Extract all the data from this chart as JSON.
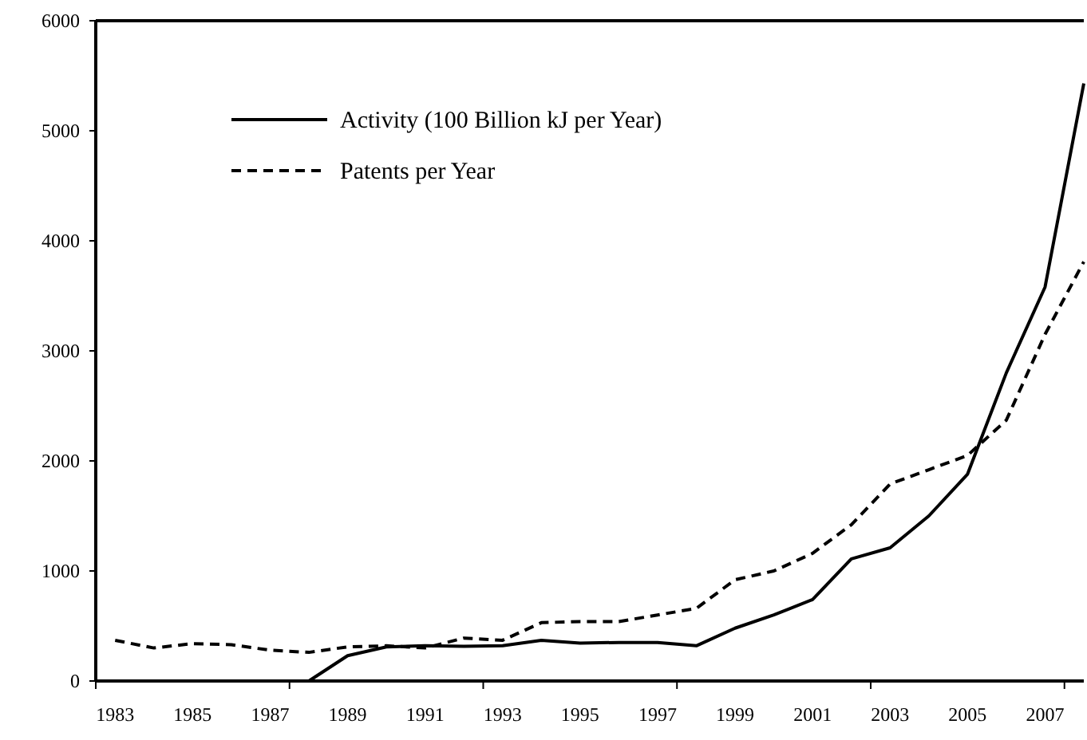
{
  "chart_data": {
    "type": "line",
    "x": [
      1983,
      1984,
      1985,
      1986,
      1987,
      1988,
      1989,
      1990,
      1991,
      1992,
      1993,
      1994,
      1995,
      1996,
      1997,
      1998,
      1999,
      2000,
      2001,
      2002,
      2003,
      2004,
      2005,
      2006,
      2007,
      2008
    ],
    "series": [
      {
        "name": "Activity (100 Billion kJ per Year)",
        "color": "#000000",
        "line_style": "solid",
        "values": [
          0,
          0,
          0,
          0,
          0,
          0,
          230,
          310,
          320,
          315,
          320,
          370,
          345,
          350,
          350,
          320,
          480,
          600,
          740,
          1110,
          1210,
          1500,
          1880,
          2800,
          3580,
          5430
        ]
      },
      {
        "name": "Patents per Year",
        "color": "#000000",
        "line_style": "dashed",
        "values": [
          370,
          300,
          340,
          330,
          280,
          260,
          310,
          320,
          300,
          390,
          370,
          530,
          540,
          540,
          600,
          660,
          920,
          1000,
          1160,
          1420,
          1790,
          1920,
          2050,
          2370,
          3150,
          3810
        ]
      }
    ],
    "xlim": [
      1982.5,
      2008
    ],
    "xticks": [
      {
        "value": 1982.5,
        "label": null
      },
      1983,
      1985,
      1987,
      {
        "value": 1987.5,
        "label": null
      },
      1989,
      1991,
      {
        "value": 1992.5,
        "label": null
      },
      1993,
      1995,
      1997,
      {
        "value": 1997.5,
        "label": null
      },
      1999,
      2001,
      {
        "value": 2002.5,
        "label": null
      },
      2003,
      2005,
      2007,
      {
        "value": 2007.5,
        "label": null
      }
    ],
    "ylim": [
      0,
      6000
    ],
    "yticks": [
      0,
      1000,
      2000,
      3000,
      4000,
      5000,
      6000
    ],
    "grid": false,
    "legend": "top left",
    "marker": "none"
  }
}
